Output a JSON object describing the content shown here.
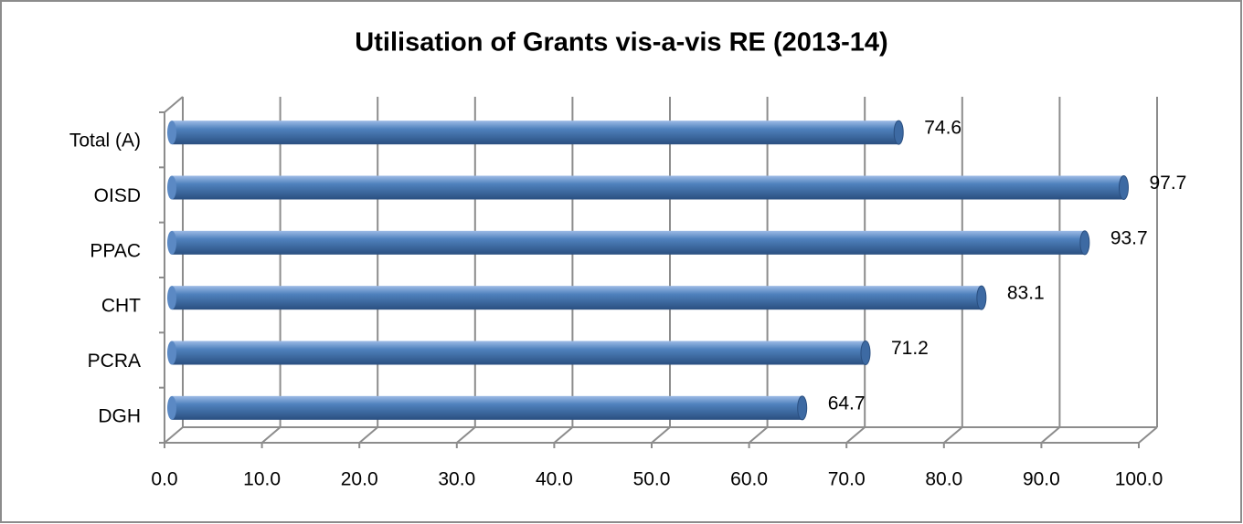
{
  "chart_data": {
    "type": "bar",
    "orientation": "horizontal",
    "title": "Utilisation of Grants vis-a-vis RE (2013-14)",
    "categories": [
      "Total (A)",
      "OISD",
      "PPAC",
      "CHT",
      "PCRA",
      "DGH"
    ],
    "values": [
      74.6,
      97.7,
      93.7,
      83.1,
      71.2,
      64.7
    ],
    "color": "#4f81bd",
    "xlim": [
      0,
      100
    ],
    "xticks": [
      {
        "value": 0,
        "label": "0.0"
      },
      {
        "value": 10,
        "label": "10.0"
      },
      {
        "value": 20,
        "label": "20.0"
      },
      {
        "value": 30,
        "label": "30.0"
      },
      {
        "value": 40,
        "label": "40.0"
      },
      {
        "value": 50,
        "label": "50.0"
      },
      {
        "value": 60,
        "label": "60.0"
      },
      {
        "value": 70,
        "label": "70.0"
      },
      {
        "value": 80,
        "label": "80.0"
      },
      {
        "value": 90,
        "label": "90.0"
      },
      {
        "value": 100,
        "label": "100.0"
      }
    ],
    "grid": true
  }
}
